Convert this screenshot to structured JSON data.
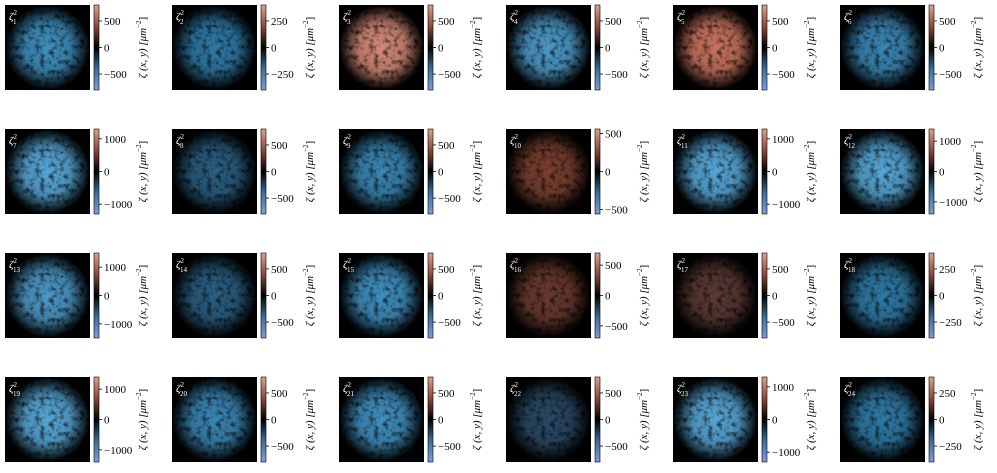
{
  "chart_data": [
    {
      "type": "heatmap",
      "title": {
        "symbol": "ζ",
        "sup": "2",
        "sub": "1"
      },
      "color": "#3f8fbf",
      "clim": [
        -800,
        800
      ],
      "cticks": [
        {
          "value": 500,
          "label": "500"
        },
        0,
        {
          "value": -500,
          "label": "−500"
        }
      ],
      "colorbar_label": {
        "text": "ζ (x, y) [μm",
        "sup": "−2",
        "end": "]"
      }
    },
    {
      "type": "heatmap",
      "title": {
        "symbol": "ζ",
        "sup": "2",
        "sub": "2"
      },
      "color": "#2f7aa6",
      "clim": [
        -400,
        400
      ],
      "cticks": [
        {
          "value": 250,
          "label": "250"
        },
        0,
        {
          "value": -250,
          "label": "−250"
        }
      ],
      "colorbar_label": {
        "text": "ζ (x, y) [μm",
        "sup": "−2",
        "end": "]"
      }
    },
    {
      "type": "heatmap",
      "title": {
        "symbol": "ζ",
        "sup": "2",
        "sub": "3"
      },
      "color": "#d58a78",
      "clim": [
        -800,
        800
      ],
      "cticks": [
        {
          "value": 500,
          "label": "500"
        },
        0,
        {
          "value": -500,
          "label": "−500"
        }
      ],
      "colorbar_label": {
        "text": "ζ (x, y) [μm",
        "sup": "−2",
        "end": "]"
      }
    },
    {
      "type": "heatmap",
      "title": {
        "symbol": "ζ",
        "sup": "2",
        "sub": "4"
      },
      "color": "#4c98c8",
      "clim": [
        -800,
        800
      ],
      "cticks": [
        {
          "value": 500,
          "label": "500"
        },
        0,
        {
          "value": -500,
          "label": "−500"
        }
      ],
      "colorbar_label": {
        "text": "ζ (x, y) [μm",
        "sup": "−2",
        "end": "]"
      }
    },
    {
      "type": "heatmap",
      "title": {
        "symbol": "ζ",
        "sup": "2",
        "sub": "5"
      },
      "color": "#c9735e",
      "clim": [
        -800,
        800
      ],
      "cticks": [
        {
          "value": 500,
          "label": "500"
        },
        0,
        {
          "value": -500,
          "label": "−500"
        }
      ],
      "colorbar_label": {
        "text": "ζ (x, y) [μm",
        "sup": "−2",
        "end": "]"
      }
    },
    {
      "type": "heatmap",
      "title": {
        "symbol": "ζ",
        "sup": "2",
        "sub": "6"
      },
      "color": "#3a86b4",
      "clim": [
        -800,
        800
      ],
      "cticks": [
        {
          "value": 500,
          "label": "500"
        },
        0,
        {
          "value": -500,
          "label": "−500"
        }
      ],
      "colorbar_label": {
        "text": "ζ (x, y) [μm",
        "sup": "−2",
        "end": "]"
      }
    },
    {
      "type": "heatmap",
      "title": {
        "symbol": "ζ",
        "sup": "2",
        "sub": "7"
      },
      "color": "#56a6d6",
      "clim": [
        -1300,
        1300
      ],
      "cticks": [
        {
          "value": 1000,
          "label": "1000"
        },
        0,
        {
          "value": -1000,
          "label": "−1000"
        }
      ],
      "colorbar_label": {
        "text": "ζ (x, y) [μm",
        "sup": "−2",
        "end": "]"
      }
    },
    {
      "type": "heatmap",
      "title": {
        "symbol": "ζ",
        "sup": "2",
        "sub": "8"
      },
      "color": "#2a5f82",
      "clim": [
        -800,
        800
      ],
      "cticks": [
        {
          "value": 500,
          "label": "500"
        },
        0,
        {
          "value": -500,
          "label": "−500"
        }
      ],
      "colorbar_label": {
        "text": "ζ (x, y) [μm",
        "sup": "−2",
        "end": "]"
      }
    },
    {
      "type": "heatmap",
      "title": {
        "symbol": "ζ",
        "sup": "2",
        "sub": "9"
      },
      "color": "#3a86b4",
      "clim": [
        -800,
        800
      ],
      "cticks": [
        {
          "value": 500,
          "label": "500"
        },
        0,
        {
          "value": -500,
          "label": "−500"
        }
      ],
      "colorbar_label": {
        "text": "ζ (x, y) [μm",
        "sup": "−2",
        "end": "]"
      }
    },
    {
      "type": "heatmap",
      "title": {
        "symbol": "ζ",
        "sup": "2",
        "sub": "10"
      },
      "color": "#7a4030",
      "clim": [
        -560,
        560
      ],
      "cticks": [
        {
          "value": 500,
          "label": "500"
        },
        0,
        {
          "value": -500,
          "label": "−500"
        }
      ],
      "colorbar_label": {
        "text": "ζ (x, y) [μm",
        "sup": "−2",
        "end": "]"
      }
    },
    {
      "type": "heatmap",
      "title": {
        "symbol": "ζ",
        "sup": "2",
        "sub": "11"
      },
      "color": "#56a6d6",
      "clim": [
        -1300,
        1300
      ],
      "cticks": [
        {
          "value": 1000,
          "label": "1000"
        },
        0,
        {
          "value": -1000,
          "label": "−1000"
        }
      ],
      "colorbar_label": {
        "text": "ζ (x, y) [μm",
        "sup": "−2",
        "end": "]"
      }
    },
    {
      "type": "heatmap",
      "title": {
        "symbol": "ζ",
        "sup": "2",
        "sub": "12"
      },
      "color": "#56a6d6",
      "clim": [
        -1400,
        1400
      ],
      "cticks": [
        {
          "value": 1000,
          "label": "1000"
        },
        0,
        {
          "value": -1000,
          "label": "−1000"
        }
      ],
      "colorbar_label": {
        "text": "ζ (x, y) [μm",
        "sup": "−2",
        "end": "]"
      }
    },
    {
      "type": "heatmap",
      "title": {
        "symbol": "ζ",
        "sup": "2",
        "sub": "13"
      },
      "color": "#4c98c8",
      "clim": [
        -1500,
        1500
      ],
      "cticks": [
        {
          "value": 1000,
          "label": "1000"
        },
        0,
        {
          "value": -1000,
          "label": "−1000"
        }
      ],
      "colorbar_label": {
        "text": "ζ (x, y) [μm",
        "sup": "−2",
        "end": "]"
      }
    },
    {
      "type": "heatmap",
      "title": {
        "symbol": "ζ",
        "sup": "2",
        "sub": "14"
      },
      "color": "#2a5f82",
      "clim": [
        -800,
        800
      ],
      "cticks": [
        {
          "value": 500,
          "label": "500"
        },
        0,
        {
          "value": -500,
          "label": "−500"
        }
      ],
      "colorbar_label": {
        "text": "ζ (x, y) [μm",
        "sup": "−2",
        "end": "]"
      }
    },
    {
      "type": "heatmap",
      "title": {
        "symbol": "ζ",
        "sup": "2",
        "sub": "15"
      },
      "color": "#3f8fbf",
      "clim": [
        -800,
        800
      ],
      "cticks": [
        {
          "value": 500,
          "label": "500"
        },
        0,
        {
          "value": -500,
          "label": "−500"
        }
      ],
      "colorbar_label": {
        "text": "ζ (x, y) [μm",
        "sup": "−2",
        "end": "]"
      }
    },
    {
      "type": "heatmap",
      "title": {
        "symbol": "ζ",
        "sup": "2",
        "sub": "16"
      },
      "color": "#6a3a30",
      "clim": [
        -700,
        700
      ],
      "cticks": [
        {
          "value": 500,
          "label": "500"
        },
        0,
        {
          "value": -500,
          "label": "−500"
        }
      ],
      "colorbar_label": {
        "text": "ζ (x, y) [μm",
        "sup": "−2",
        "end": "]"
      }
    },
    {
      "type": "heatmap",
      "title": {
        "symbol": "ζ",
        "sup": "2",
        "sub": "17"
      },
      "color": "#5a3a34",
      "clim": [
        -800,
        800
      ],
      "cticks": [
        {
          "value": 500,
          "label": "500"
        },
        0,
        {
          "value": -500,
          "label": "−500"
        }
      ],
      "colorbar_label": {
        "text": "ζ (x, y) [μm",
        "sup": "−2",
        "end": "]"
      }
    },
    {
      "type": "heatmap",
      "title": {
        "symbol": "ζ",
        "sup": "2",
        "sub": "18"
      },
      "color": "#2f7aa6",
      "clim": [
        -400,
        400
      ],
      "cticks": [
        {
          "value": 250,
          "label": "250"
        },
        0,
        {
          "value": -250,
          "label": "−250"
        }
      ],
      "colorbar_label": {
        "text": "ζ (x, y) [μm",
        "sup": "−2",
        "end": "]"
      }
    },
    {
      "type": "heatmap",
      "title": {
        "symbol": "ζ",
        "sup": "2",
        "sub": "19"
      },
      "color": "#56a6d6",
      "clim": [
        -1400,
        1400
      ],
      "cticks": [
        {
          "value": 1000,
          "label": "1000"
        },
        0,
        {
          "value": -1000,
          "label": "−1000"
        }
      ],
      "colorbar_label": {
        "text": "ζ (x, y) [μm",
        "sup": "−2",
        "end": "]"
      }
    },
    {
      "type": "heatmap",
      "title": {
        "symbol": "ζ",
        "sup": "2",
        "sub": "20"
      },
      "color": "#3a86b4",
      "clim": [
        -800,
        800
      ],
      "cticks": [
        {
          "value": 500,
          "label": "500"
        },
        0,
        {
          "value": -500,
          "label": "−500"
        }
      ],
      "colorbar_label": {
        "text": "ζ (x, y) [μm",
        "sup": "−2",
        "end": "]"
      }
    },
    {
      "type": "heatmap",
      "title": {
        "symbol": "ζ",
        "sup": "2",
        "sub": "21"
      },
      "color": "#3f8fbf",
      "clim": [
        -800,
        800
      ],
      "cticks": [
        {
          "value": 500,
          "label": "500"
        },
        0,
        {
          "value": -500,
          "label": "−500"
        }
      ],
      "colorbar_label": {
        "text": "ζ (x, y) [μm",
        "sup": "−2",
        "end": "]"
      }
    },
    {
      "type": "heatmap",
      "title": {
        "symbol": "ζ",
        "sup": "2",
        "sub": "22"
      },
      "color": "#2a4a66",
      "clim": [
        -800,
        800
      ],
      "cticks": [
        {
          "value": 500,
          "label": "500"
        },
        0,
        {
          "value": -500,
          "label": "−500"
        }
      ],
      "colorbar_label": {
        "text": "ζ (x, y) [μm",
        "sup": "−2",
        "end": "]"
      }
    },
    {
      "type": "heatmap",
      "title": {
        "symbol": "ζ",
        "sup": "2",
        "sub": "23"
      },
      "color": "#56a6d6",
      "clim": [
        -1300,
        1300
      ],
      "cticks": [
        {
          "value": 1000,
          "label": "1000"
        },
        0,
        {
          "value": -1000,
          "label": "−1000"
        }
      ],
      "colorbar_label": {
        "text": "ζ (x, y) [μm",
        "sup": "−2",
        "end": "]"
      }
    },
    {
      "type": "heatmap",
      "title": {
        "symbol": "ζ",
        "sup": "2",
        "sub": "24"
      },
      "color": "#2f7aa6",
      "clim": [
        -400,
        400
      ],
      "cticks": [
        {
          "value": 250,
          "label": "250"
        },
        0,
        {
          "value": -250,
          "label": "−250"
        }
      ],
      "colorbar_label": {
        "text": "ζ (x, y) [μm",
        "sup": "−2",
        "end": "]"
      }
    }
  ]
}
